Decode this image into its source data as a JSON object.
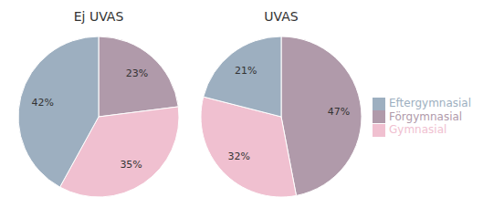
{
  "chart_data": [
    {
      "type": "pie",
      "title": "Ej UVAS",
      "categories": [
        "Förgymnasial",
        "Gymnasial",
        "Eftergymnasial"
      ],
      "values": [
        23,
        35,
        42
      ],
      "value_labels": [
        "23%",
        "35%",
        "42%"
      ],
      "colors": [
        "#b09aaa",
        "#f0c0d0",
        "#9dafc0"
      ],
      "data_labels": true
    },
    {
      "type": "pie",
      "title": "UVAS",
      "categories": [
        "Förgymnasial",
        "Gymnasial",
        "Eftergymnasial"
      ],
      "values": [
        47,
        32,
        21
      ],
      "value_labels": [
        "47%",
        "32%",
        "21%"
      ],
      "colors": [
        "#b09aaa",
        "#f0c0d0",
        "#9dafc0"
      ],
      "data_labels": true,
      "legend": "right"
    }
  ]
}
